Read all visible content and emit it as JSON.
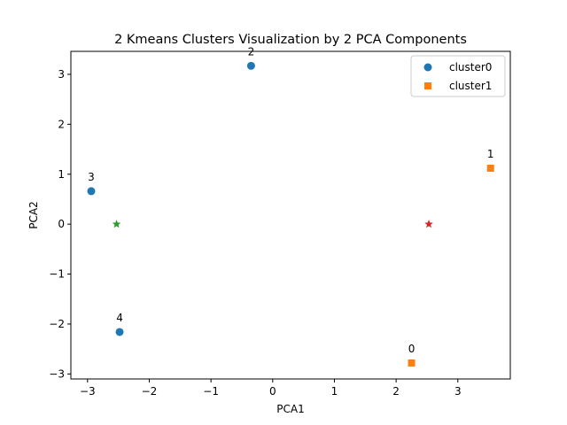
{
  "chart_data": {
    "type": "scatter",
    "title": "2 Kmeans Clusters Visualization by 2 PCA Components",
    "xlabel": "PCA1",
    "ylabel": "PCA2",
    "xlim": [
      -3.27,
      3.85
    ],
    "ylim": [
      -3.1,
      3.46
    ],
    "xticks": [
      -3,
      -2,
      -1,
      0,
      1,
      2,
      3
    ],
    "yticks": [
      -3,
      -2,
      -1,
      0,
      1,
      2,
      3
    ],
    "tick_labels_x": [
      "−3",
      "−2",
      "−1",
      "0",
      "1",
      "2",
      "3"
    ],
    "tick_labels_y": [
      "−3",
      "−2",
      "−1",
      "0",
      "1",
      "2",
      "3"
    ],
    "grid": false,
    "legend_position": "top-right",
    "series": [
      {
        "name": "cluster0",
        "marker": "circle",
        "color": "#1f77b4",
        "points": [
          {
            "x": -0.35,
            "y": 3.17,
            "label": "2"
          },
          {
            "x": -2.94,
            "y": 0.66,
            "label": "3"
          },
          {
            "x": -2.48,
            "y": -2.16,
            "label": "4"
          }
        ]
      },
      {
        "name": "cluster1",
        "marker": "square",
        "color": "#ff7f0e",
        "points": [
          {
            "x": 3.53,
            "y": 1.12,
            "label": "1"
          },
          {
            "x": 2.25,
            "y": -2.78,
            "label": "0"
          }
        ]
      }
    ],
    "centroids": [
      {
        "x": -2.53,
        "y": 0.0,
        "marker": "star",
        "color": "#2ca02c"
      },
      {
        "x": 2.53,
        "y": 0.0,
        "marker": "star",
        "color": "#d62728"
      }
    ]
  }
}
